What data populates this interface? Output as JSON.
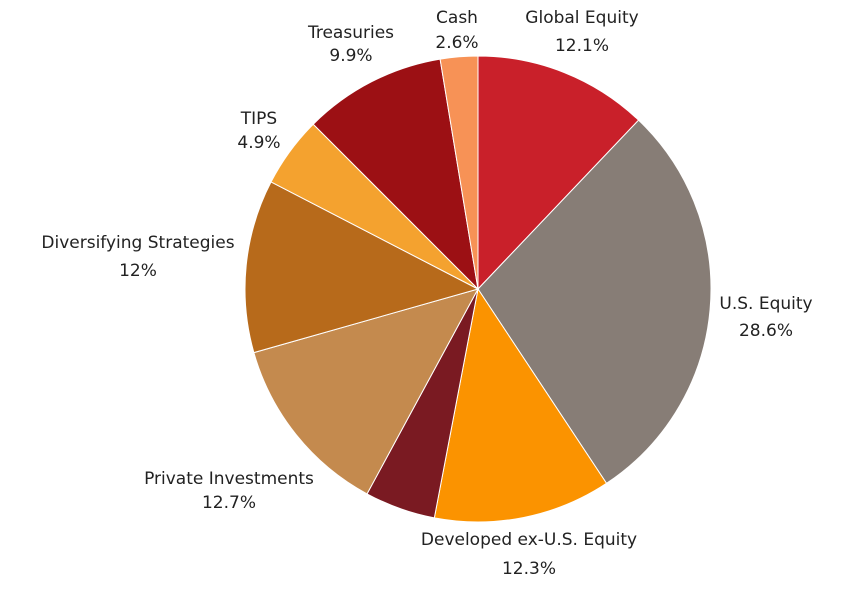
{
  "chart_data": {
    "type": "pie",
    "title": "",
    "slices": [
      {
        "label": "Global Equity",
        "value": 12.1,
        "value_label": "12.1%",
        "color": "#c9202a"
      },
      {
        "label": "U.S. Equity",
        "value": 28.6,
        "value_label": "28.6%",
        "color": "#877d76"
      },
      {
        "label": "Developed ex-U.S. Equity",
        "value": 12.3,
        "value_label": "12.3%",
        "color": "#fb9300"
      },
      {
        "label": "",
        "value": 4.9,
        "value_label": "",
        "color": "#7a1a22"
      },
      {
        "label": "Private Investments",
        "value": 12.7,
        "value_label": "12.7%",
        "color": "#c48a4e"
      },
      {
        "label": "Diversifying Strategies",
        "value": 12,
        "value_label": "12%",
        "color": "#b76a1b"
      },
      {
        "label": "TIPS",
        "value": 4.9,
        "value_label": "4.9%",
        "color": "#f4a22f"
      },
      {
        "label": "Treasuries",
        "value": 9.9,
        "value_label": "9.9%",
        "color": "#9c1014"
      },
      {
        "label": "Cash",
        "value": 2.6,
        "value_label": "2.6%",
        "color": "#f79256"
      }
    ],
    "start_angle": "12 o'clock",
    "direction": "clockwise",
    "legend": "none"
  }
}
